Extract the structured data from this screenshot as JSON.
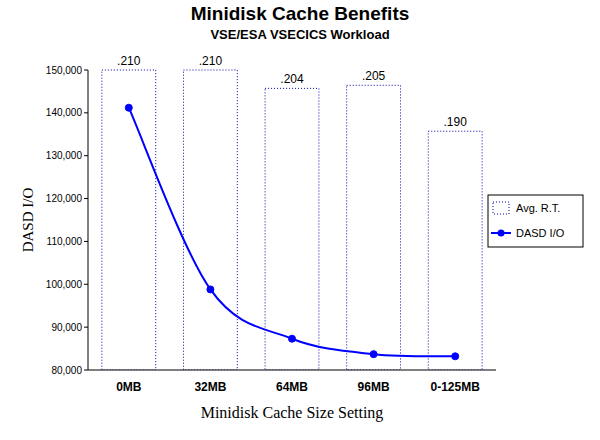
{
  "chart_data": {
    "type": "bar",
    "title": "Minidisk Cache Benefits",
    "subtitle": "VSE/ESA VSECICS Workload",
    "x_label": "Minidisk Cache Size Setting",
    "y_label": "DASD I/O",
    "categories": [
      "0MB",
      "32MB",
      "64MB",
      "96MB",
      "0-125MB"
    ],
    "series": [
      {
        "name": "Avg. R.T.",
        "type": "bar",
        "axis": "y2",
        "color": "#0000aa",
        "values": [
          0.21,
          0.21,
          0.204,
          0.205,
          0.19
        ],
        "value_labels": [
          ".210",
          ".210",
          ".204",
          ".205",
          ".190"
        ]
      },
      {
        "name": "DASD I/O",
        "type": "line",
        "color": "#0000ff",
        "marker": "circle",
        "line_style": "solid",
        "values": [
          141200,
          98800,
          87300,
          83700,
          83200
        ]
      }
    ],
    "ylim": [
      80000,
      150000
    ],
    "yticks": [
      {
        "value": 80000,
        "label": "80,000"
      },
      {
        "value": 90000,
        "label": "90,000"
      },
      {
        "value": 100000,
        "label": "100,000"
      },
      {
        "value": 110000,
        "label": "110,000"
      },
      {
        "value": 120000,
        "label": "120,000"
      },
      {
        "value": 130000,
        "label": "130,000"
      },
      {
        "value": 140000,
        "label": "140,000"
      },
      {
        "value": 150000,
        "label": "150,000"
      }
    ],
    "y2lim": [
      0.112,
      0.21
    ],
    "data_labels": true,
    "grid": false,
    "legend": "right"
  }
}
